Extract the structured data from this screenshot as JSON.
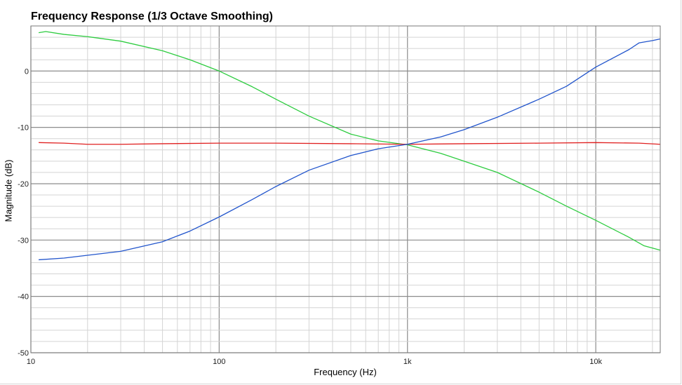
{
  "chart_data": {
    "type": "line",
    "title": "Frequency Response (1/3 Octave Smoothing)",
    "xlabel": "Frequency (Hz)",
    "ylabel": "Magnitude (dB)",
    "xscale": "log",
    "xlim": [
      10,
      22000
    ],
    "ylim": [
      -50,
      8
    ],
    "xticks": [
      {
        "value": 10,
        "label": "10"
      },
      {
        "value": 100,
        "label": "100"
      },
      {
        "value": 1000,
        "label": "1k"
      },
      {
        "value": 10000,
        "label": "10k"
      }
    ],
    "yticks": [
      {
        "value": 0,
        "label": "0"
      },
      {
        "value": -10,
        "label": "-10"
      },
      {
        "value": -20,
        "label": "-20"
      },
      {
        "value": -30,
        "label": "-30"
      },
      {
        "value": -40,
        "label": "-40"
      },
      {
        "value": -50,
        "label": "-50"
      }
    ],
    "grid": true,
    "legend": "none",
    "series": [
      {
        "color": "#2ecc40",
        "points": [
          [
            11,
            6.8
          ],
          [
            12,
            7.0
          ],
          [
            15,
            6.5
          ],
          [
            20,
            6.1
          ],
          [
            30,
            5.3
          ],
          [
            50,
            3.6
          ],
          [
            70,
            2.0
          ],
          [
            100,
            0.0
          ],
          [
            150,
            -2.8
          ],
          [
            200,
            -5.0
          ],
          [
            300,
            -8.0
          ],
          [
            500,
            -11.2
          ],
          [
            700,
            -12.4
          ],
          [
            1000,
            -13.1
          ],
          [
            1500,
            -14.6
          ],
          [
            2000,
            -16.0
          ],
          [
            3000,
            -18.0
          ],
          [
            5000,
            -21.5
          ],
          [
            7000,
            -24.0
          ],
          [
            10000,
            -26.5
          ],
          [
            15000,
            -29.5
          ],
          [
            18000,
            -31.0
          ],
          [
            22000,
            -31.8
          ]
        ]
      },
      {
        "color": "#e02020",
        "points": [
          [
            11,
            -12.7
          ],
          [
            15,
            -12.8
          ],
          [
            20,
            -13.0
          ],
          [
            30,
            -13.0
          ],
          [
            50,
            -12.9
          ],
          [
            100,
            -12.8
          ],
          [
            200,
            -12.8
          ],
          [
            500,
            -12.9
          ],
          [
            1000,
            -13.0
          ],
          [
            2000,
            -12.9
          ],
          [
            5000,
            -12.8
          ],
          [
            10000,
            -12.7
          ],
          [
            17000,
            -12.8
          ],
          [
            22000,
            -13.0
          ]
        ]
      },
      {
        "color": "#2255cc",
        "points": [
          [
            11,
            -33.5
          ],
          [
            15,
            -33.2
          ],
          [
            20,
            -32.7
          ],
          [
            30,
            -32.0
          ],
          [
            50,
            -30.3
          ],
          [
            70,
            -28.4
          ],
          [
            100,
            -25.9
          ],
          [
            150,
            -22.8
          ],
          [
            200,
            -20.5
          ],
          [
            300,
            -17.6
          ],
          [
            500,
            -15.0
          ],
          [
            700,
            -13.8
          ],
          [
            1000,
            -13.0
          ],
          [
            1500,
            -11.7
          ],
          [
            2000,
            -10.4
          ],
          [
            3000,
            -8.2
          ],
          [
            5000,
            -5.0
          ],
          [
            7000,
            -2.7
          ],
          [
            10000,
            0.7
          ],
          [
            15000,
            3.8
          ],
          [
            17000,
            5.0
          ],
          [
            20000,
            5.4
          ],
          [
            22000,
            5.7
          ]
        ]
      }
    ]
  }
}
